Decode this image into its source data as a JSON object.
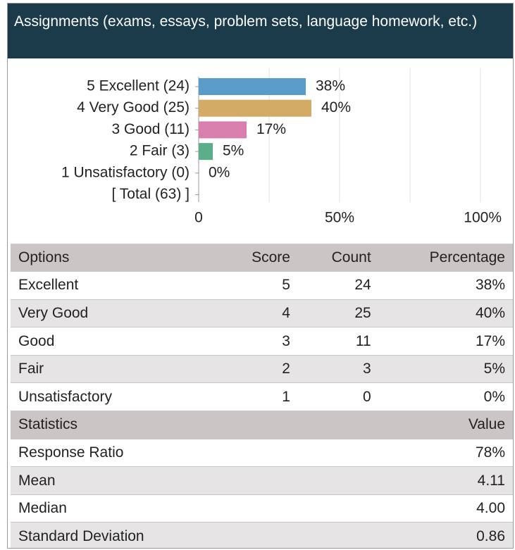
{
  "header": {
    "title": "Assignments (exams, essays, problem sets, language homework, etc.)"
  },
  "chart_data": {
    "type": "barh",
    "categories": [
      "5 Excellent (24)",
      "4 Very Good (25)",
      "3 Good (11)",
      "2 Fair (3)",
      "1 Unsatisfactory (0)"
    ],
    "values": [
      38,
      40,
      17,
      5,
      0
    ],
    "value_labels": [
      "38%",
      "40%",
      "17%",
      "5%",
      "0%"
    ],
    "colors": [
      "#5b9bc9",
      "#d3aa66",
      "#d97fae",
      "#5cae8a",
      "#999999"
    ],
    "total_label": "[ Total (63) ]",
    "xlim": [
      0,
      100
    ],
    "xticks": [
      0,
      {
        "value": 50,
        "label": "50%"
      },
      {
        "value": 100,
        "label": "100%"
      }
    ],
    "minor_xticks": [
      25,
      75
    ],
    "grid": true
  },
  "options_table": {
    "columns": [
      "Options",
      "Score",
      "Count",
      "Percentage"
    ],
    "rows": [
      [
        "Excellent",
        "5",
        "24",
        "38%"
      ],
      [
        "Very Good",
        "4",
        "25",
        "40%"
      ],
      [
        "Good",
        "3",
        "11",
        "17%"
      ],
      [
        "Fair",
        "2",
        "3",
        "5%"
      ],
      [
        "Unsatisfactory",
        "1",
        "0",
        "0%"
      ]
    ]
  },
  "statistics_table": {
    "columns": [
      "Statistics",
      "Value"
    ],
    "rows": [
      [
        "Response Ratio",
        "78%"
      ],
      [
        "Mean",
        "4.11"
      ],
      [
        "Median",
        "4.00"
      ],
      [
        "Standard Deviation",
        "0.86"
      ]
    ]
  }
}
